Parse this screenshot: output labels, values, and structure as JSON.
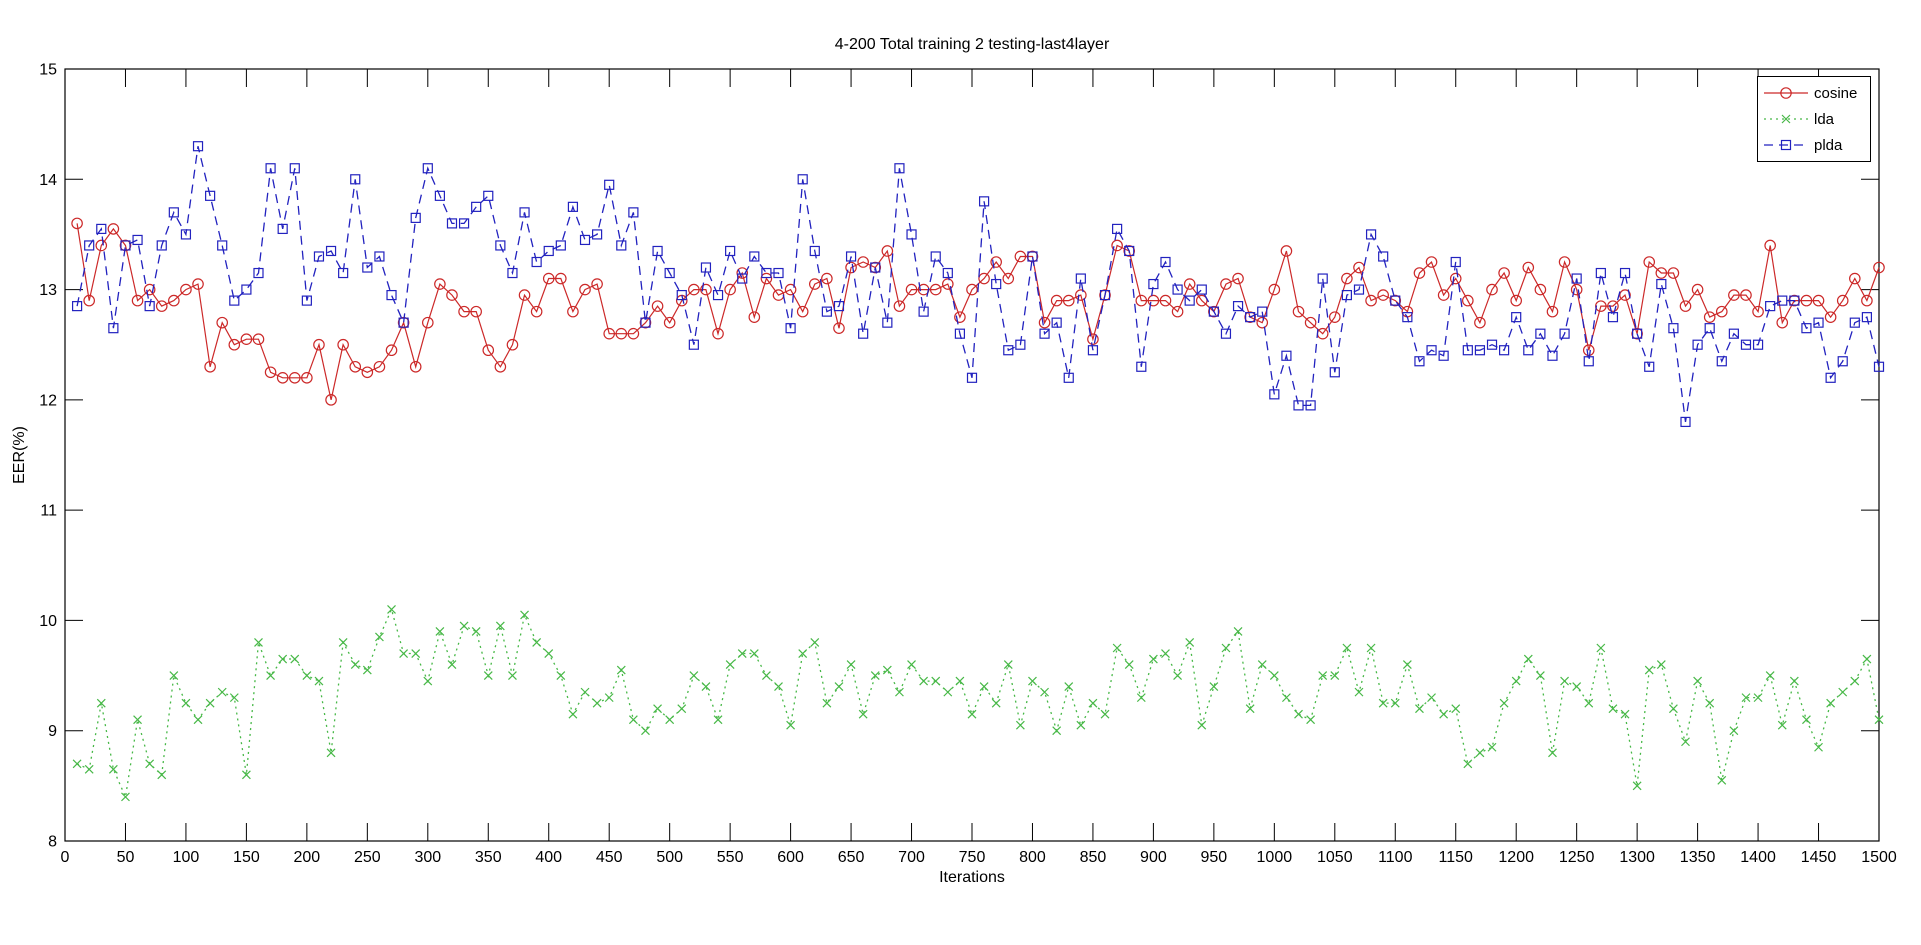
{
  "chart_data": {
    "type": "line",
    "title": "4-200 Total training 2 testing-last4layer",
    "xlabel": "Iterations",
    "ylabel": "EER(%)",
    "xlim": [
      0,
      1500
    ],
    "ylim": [
      8,
      15
    ],
    "x_ticks": [
      0,
      50,
      100,
      150,
      200,
      250,
      300,
      350,
      400,
      450,
      500,
      550,
      600,
      650,
      700,
      750,
      800,
      850,
      900,
      950,
      1000,
      1050,
      1100,
      1150,
      1200,
      1250,
      1300,
      1350,
      1400,
      1450,
      1500
    ],
    "y_ticks": [
      8,
      9,
      10,
      11,
      12,
      13,
      14,
      15
    ],
    "grid": false,
    "legend_position": "top-right",
    "frame_color": "#000000",
    "background": "#ffffff",
    "x": [
      10,
      20,
      30,
      40,
      50,
      60,
      70,
      80,
      90,
      100,
      110,
      120,
      130,
      140,
      150,
      160,
      170,
      180,
      190,
      200,
      210,
      220,
      230,
      240,
      250,
      260,
      270,
      280,
      290,
      300,
      310,
      320,
      330,
      340,
      350,
      360,
      370,
      380,
      390,
      400,
      410,
      420,
      430,
      440,
      450,
      460,
      470,
      480,
      490,
      500,
      510,
      520,
      530,
      540,
      550,
      560,
      570,
      580,
      590,
      600,
      610,
      620,
      630,
      640,
      650,
      660,
      670,
      680,
      690,
      700,
      710,
      720,
      730,
      740,
      750,
      760,
      770,
      780,
      790,
      800,
      810,
      820,
      830,
      840,
      850,
      860,
      870,
      880,
      890,
      900,
      910,
      920,
      930,
      940,
      950,
      960,
      970,
      980,
      990,
      1000,
      1010,
      1020,
      1030,
      1040,
      1050,
      1060,
      1070,
      1080,
      1090,
      1100,
      1110,
      1120,
      1130,
      1140,
      1150,
      1160,
      1170,
      1180,
      1190,
      1200,
      1210,
      1220,
      1230,
      1240,
      1250,
      1260,
      1270,
      1280,
      1290,
      1300,
      1310,
      1320,
      1330,
      1340,
      1350,
      1360,
      1370,
      1380,
      1390,
      1400,
      1410,
      1420,
      1430,
      1440,
      1450,
      1460,
      1470,
      1480,
      1490,
      1500
    ],
    "series": [
      {
        "name": "cosine",
        "color": "#cc2929",
        "marker": "circle",
        "line_style": "solid",
        "values": [
          13.6,
          12.9,
          13.4,
          13.55,
          13.4,
          12.9,
          13.0,
          12.85,
          12.9,
          13.0,
          13.05,
          12.3,
          12.7,
          12.5,
          12.55,
          12.55,
          12.25,
          12.2,
          12.2,
          12.2,
          12.5,
          12.0,
          12.5,
          12.3,
          12.25,
          12.3,
          12.45,
          12.7,
          12.3,
          12.7,
          13.05,
          12.95,
          12.8,
          12.8,
          12.45,
          12.3,
          12.5,
          12.95,
          12.8,
          13.1,
          13.1,
          12.8,
          13.0,
          13.05,
          12.6,
          12.6,
          12.6,
          12.7,
          12.85,
          12.7,
          12.9,
          13.0,
          13.0,
          12.6,
          13.0,
          13.15,
          12.75,
          13.1,
          12.95,
          13.0,
          12.8,
          13.05,
          13.1,
          12.65,
          13.2,
          13.25,
          13.2,
          13.35,
          12.85,
          13.0,
          13.0,
          13.0,
          13.05,
          12.75,
          13.0,
          13.1,
          13.25,
          13.1,
          13.3,
          13.3,
          12.7,
          12.9,
          12.9,
          12.95,
          12.55,
          12.95,
          13.4,
          13.35,
          12.9,
          12.9,
          12.9,
          12.8,
          13.05,
          12.9,
          12.8,
          13.05,
          13.1,
          12.75,
          12.7,
          13.0,
          13.35,
          12.8,
          12.7,
          12.6,
          12.75,
          13.1,
          13.2,
          12.9,
          12.95,
          12.9,
          12.8,
          13.15,
          13.25,
          12.95,
          13.1,
          12.9,
          12.7,
          13.0,
          13.15,
          12.9,
          13.2,
          13.0,
          12.8,
          13.25,
          13.0,
          12.45,
          12.85,
          12.85,
          12.95,
          12.6,
          13.25,
          13.15,
          13.15,
          12.85,
          13.0,
          12.75,
          12.8,
          12.95,
          12.95,
          12.8,
          13.4,
          12.7,
          12.9,
          12.9,
          12.9,
          12.75,
          12.9,
          13.1,
          12.9,
          13.2
        ]
      },
      {
        "name": "lda",
        "color": "#47b847",
        "marker": "x",
        "line_style": "dotted",
        "values": [
          8.7,
          8.65,
          9.25,
          8.65,
          8.4,
          9.1,
          8.7,
          8.6,
          9.5,
          9.25,
          9.1,
          9.25,
          9.35,
          9.3,
          8.6,
          9.8,
          9.5,
          9.65,
          9.65,
          9.5,
          9.45,
          8.8,
          9.8,
          9.6,
          9.55,
          9.85,
          10.1,
          9.7,
          9.7,
          9.45,
          9.9,
          9.6,
          9.95,
          9.9,
          9.5,
          9.95,
          9.5,
          10.05,
          9.8,
          9.7,
          9.5,
          9.15,
          9.35,
          9.25,
          9.3,
          9.55,
          9.1,
          9.0,
          9.2,
          9.1,
          9.2,
          9.5,
          9.4,
          9.1,
          9.6,
          9.7,
          9.7,
          9.5,
          9.4,
          9.05,
          9.7,
          9.8,
          9.25,
          9.4,
          9.6,
          9.15,
          9.5,
          9.55,
          9.35,
          9.6,
          9.45,
          9.45,
          9.35,
          9.45,
          9.15,
          9.4,
          9.25,
          9.6,
          9.05,
          9.45,
          9.35,
          9.0,
          9.4,
          9.05,
          9.25,
          9.15,
          9.75,
          9.6,
          9.3,
          9.65,
          9.7,
          9.5,
          9.8,
          9.05,
          9.4,
          9.75,
          9.9,
          9.2,
          9.6,
          9.5,
          9.3,
          9.15,
          9.1,
          9.5,
          9.5,
          9.75,
          9.35,
          9.75,
          9.25,
          9.25,
          9.6,
          9.2,
          9.3,
          9.15,
          9.2,
          8.7,
          8.8,
          8.85,
          9.25,
          9.45,
          9.65,
          9.5,
          8.8,
          9.45,
          9.4,
          9.25,
          9.75,
          9.2,
          9.15,
          8.5,
          9.55,
          9.6,
          9.2,
          8.9,
          9.45,
          9.25,
          8.55,
          9.0,
          9.3,
          9.3,
          9.5,
          9.05,
          9.45,
          9.1,
          8.85,
          9.25,
          9.35,
          9.45,
          9.65,
          9.1
        ]
      },
      {
        "name": "plda",
        "color": "#2222bf",
        "marker": "square",
        "line_style": "dashed",
        "values": [
          12.85,
          13.4,
          13.55,
          12.65,
          13.4,
          13.45,
          12.85,
          13.4,
          13.7,
          13.5,
          14.3,
          13.85,
          13.4,
          12.9,
          13.0,
          13.15,
          14.1,
          13.55,
          14.1,
          12.9,
          13.3,
          13.35,
          13.15,
          14.0,
          13.2,
          13.3,
          12.95,
          12.7,
          13.65,
          14.1,
          13.85,
          13.6,
          13.6,
          13.75,
          13.85,
          13.4,
          13.15,
          13.7,
          13.25,
          13.35,
          13.4,
          13.75,
          13.45,
          13.5,
          13.95,
          13.4,
          13.7,
          12.7,
          13.35,
          13.15,
          12.95,
          12.5,
          13.2,
          12.95,
          13.35,
          13.1,
          13.3,
          13.15,
          13.15,
          12.65,
          14.0,
          13.35,
          12.8,
          12.85,
          13.3,
          12.6,
          13.2,
          12.7,
          14.1,
          13.5,
          12.8,
          13.3,
          13.15,
          12.6,
          12.2,
          13.8,
          13.05,
          12.45,
          12.5,
          13.3,
          12.6,
          12.7,
          12.2,
          13.1,
          12.45,
          12.95,
          13.55,
          13.35,
          12.3,
          13.05,
          13.25,
          13.0,
          12.9,
          13.0,
          12.8,
          12.6,
          12.85,
          12.75,
          12.8,
          12.05,
          12.4,
          11.95,
          11.95,
          13.1,
          12.25,
          12.95,
          13.0,
          13.5,
          13.3,
          12.9,
          12.75,
          12.35,
          12.45,
          12.4,
          13.25,
          12.45,
          12.45,
          12.5,
          12.45,
          12.75,
          12.45,
          12.6,
          12.4,
          12.6,
          13.1,
          12.35,
          13.15,
          12.75,
          13.15,
          12.6,
          12.3,
          13.05,
          12.65,
          11.8,
          12.5,
          12.65,
          12.35,
          12.6,
          12.5,
          12.5,
          12.85,
          12.9,
          12.9,
          12.65,
          12.7,
          12.2,
          12.35,
          12.7,
          12.75,
          12.3
        ]
      }
    ]
  },
  "legend": {
    "items": [
      {
        "label": "cosine"
      },
      {
        "label": "lda"
      },
      {
        "label": "plda"
      }
    ]
  }
}
